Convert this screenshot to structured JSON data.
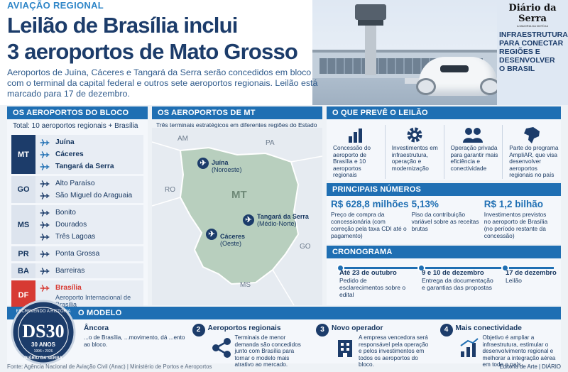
{
  "header": {
    "tag": "AVIAÇÃO REGIONAL",
    "title_line1": "Leilão de Brasília inclui",
    "title_line2": "3 aeroportos de Mato Grosso",
    "lead": "Aeroportos de Juína, Cáceres e Tangará da Serra serão concedidos em bloco com o terminal da capital federal e outros sete aeroportos regionais. Leilão está marcado para 17 de dezembro."
  },
  "brand": {
    "logo": "Diário da Serra",
    "sub": "A MAIORIA DA NOTÍCIA",
    "slogan": [
      "INFRAESTRUTURA",
      "PARA CONECTAR",
      "REGIÕES E",
      "DESENVOLVER",
      "O BRASIL"
    ]
  },
  "bloco": {
    "title": "OS AEROPORTOS DO BLOCO",
    "total": "Total: 10 aeroportos regionais + Brasília",
    "states": [
      {
        "uf": "MT",
        "airports": [
          "Juína",
          "Cáceres",
          "Tangará da Serra"
        ]
      },
      {
        "uf": "GO",
        "airports": [
          "Alto Paraíso",
          "São Miguel do Araguaia"
        ]
      },
      {
        "uf": "MS",
        "airports": [
          "Bonito",
          "Dourados",
          "Três Lagoas"
        ]
      },
      {
        "uf": "PR",
        "airports": [
          "Ponta Grossa"
        ]
      },
      {
        "uf": "BA",
        "airports": [
          "Barreiras"
        ]
      },
      {
        "uf": "DF",
        "airports": [
          "Brasília"
        ],
        "note": "Aeroporto Internacional de Brasília"
      }
    ]
  },
  "mapa": {
    "title": "OS AEROPORTOS DE MT",
    "subtitle": "Três terminais estratégicos em diferentes regiões do Estado",
    "neighbors": [
      "AM",
      "PA",
      "RO",
      "GO",
      "MS"
    ],
    "state_label": "MT",
    "cities": [
      {
        "name": "Juína",
        "region": "(Noroeste)"
      },
      {
        "name": "Tangará da Serra",
        "region": "(Médio-Norte)"
      },
      {
        "name": "Cáceres",
        "region": "(Oeste)"
      }
    ]
  },
  "preve": {
    "title": "O QUE PREVÊ O LEILÃO",
    "items": [
      {
        "icon": "bar-chart-icon",
        "text": "Concessão do aeroporto de Brasília e 10 aeroportos regionais"
      },
      {
        "icon": "gear-icon",
        "text": "Investimentos em infraestrutura, operação e modernização"
      },
      {
        "icon": "people-icon",
        "text": "Operação privada para garantir mais eficiência e conectividade"
      },
      {
        "icon": "brazil-map-icon",
        "text": "Parte do programa AmpliAR, que visa desenvolver aeroportos regionais no país"
      }
    ]
  },
  "numeros": {
    "title": "PRINCIPAIS NÚMEROS",
    "items": [
      {
        "value": "R$ 628,8 milhões",
        "desc": "Preço de compra da concessionária (com correção pela taxa CDI até o pagamento)"
      },
      {
        "value": "5,13%",
        "desc": "Piso da contribuição variável sobre as receitas brutas"
      },
      {
        "value": "R$ 1,2 bilhão",
        "desc": "Investimentos previstos no aeroporto de Brasília (no período restante da concessão)"
      }
    ]
  },
  "crono": {
    "title": "CRONOGRAMA",
    "events": [
      {
        "date": "Até 23 de outubro",
        "desc": "Pedido de esclarecimentos sobre o edital"
      },
      {
        "date": "9 e 10 de dezembro",
        "desc": "Entrega da documentação e garantias das propostas"
      },
      {
        "date": "17 de dezembro",
        "desc": "Leilão"
      }
    ]
  },
  "modelo": {
    "title": "O MODELO",
    "items": [
      {
        "n": "1",
        "title": "Âncora",
        "text": "...o de Brasília, ...movimento, dá ...ento ao bloco.",
        "icon": "anchor-icon"
      },
      {
        "n": "2",
        "title": "Aeroportos regionais",
        "text": "Terminais de menor demanda são concedidos junto com Brasília para tornar o modelo mais atrativo ao mercado.",
        "icon": "network-icon"
      },
      {
        "n": "3",
        "title": "Novo operador",
        "text": "A empresa vencedora será responsável pela operação e pelos investimentos em todos os aeroportos do bloco.",
        "icon": "building-icon"
      },
      {
        "n": "4",
        "title": "Mais conectividade",
        "text": "Objetivo é ampliar a infraestrutura, estimular o desenvolvimento regional e melhorar a integração aérea em todo o país.",
        "icon": "growth-icon"
      }
    ]
  },
  "seal": {
    "top": "ESCREVENDO A HISTÓRIA",
    "big": "DS30",
    "years": "30 ANOS",
    "range": "1996 • 2026",
    "bottom": "DIÁRIO DA SERRA"
  },
  "footer": {
    "source": "Fonte: Agência Nacional de Aviação Civil (Anac)  |  Ministério de Portos e Aeroportos",
    "credit": "Editoria de Arte  |  DIÁRIO"
  },
  "colors": {
    "primary": "#1f6fb3",
    "dark": "#1c3c6a",
    "accent": "#d73a33",
    "map": "#b8cfbe"
  }
}
